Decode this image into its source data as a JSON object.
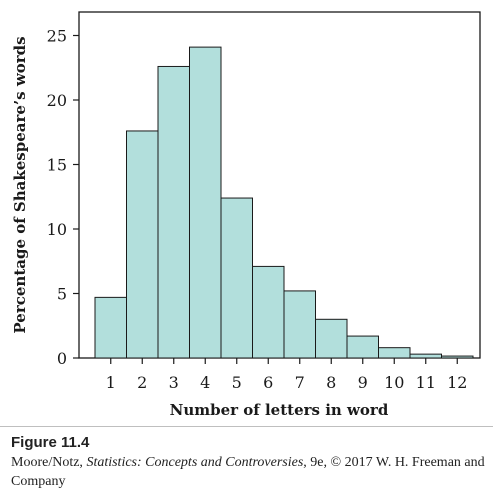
{
  "chart_data": {
    "type": "bar",
    "categories": [
      "1",
      "2",
      "3",
      "4",
      "5",
      "6",
      "7",
      "8",
      "9",
      "10",
      "11",
      "12"
    ],
    "values": [
      4.7,
      17.6,
      22.6,
      24.1,
      12.4,
      7.1,
      5.2,
      3.0,
      1.7,
      0.8,
      0.3,
      0.15
    ],
    "title": "",
    "xlabel": "Number of letters in word",
    "ylabel": "Percentage of Shakespeare’s words",
    "ylim": [
      0,
      27
    ],
    "yticks": [
      0,
      5,
      10,
      15,
      20,
      25
    ],
    "grid": false,
    "colors": {
      "bar_fill": "#b2dfdc",
      "bar_stroke": "#1a1a1a"
    }
  },
  "caption": {
    "figure_label": "Figure 11.4",
    "credit_authors": "Moore/Notz, ",
    "credit_book": "Statistics: Concepts and Controversies",
    "credit_rest": ", 9e, © 2017 W. H. Freeman and Company"
  }
}
